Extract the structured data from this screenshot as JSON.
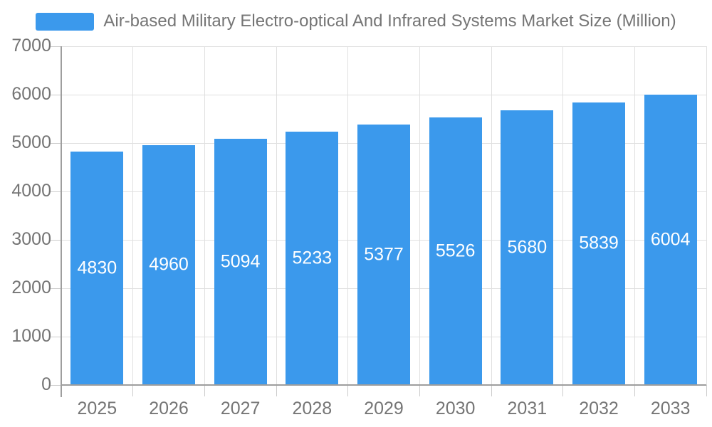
{
  "legend": {
    "label": "Air-based Military Electro-optical And Infrared Systems Market Size (Million)"
  },
  "chart_data": {
    "type": "bar",
    "title": "Air-based Military Electro-optical And Infrared Systems Market Size (Million)",
    "categories": [
      "2025",
      "2026",
      "2027",
      "2028",
      "2029",
      "2030",
      "2031",
      "2032",
      "2033"
    ],
    "values": [
      4830,
      4960,
      5094,
      5233,
      5377,
      5526,
      5680,
      5839,
      6004
    ],
    "xlabel": "",
    "ylabel": "",
    "ylim": [
      0,
      7000
    ],
    "yticks": [
      0,
      1000,
      2000,
      3000,
      4000,
      5000,
      6000,
      7000
    ],
    "grid": true,
    "legend_position": "top-center",
    "bar_color": "#3B99EC",
    "value_label_color": "#FFFFFF",
    "text_color": "#757575",
    "axis_color": "#9E9E9E",
    "grid_color": "#E0E0E0",
    "tick_color": "#CCCCCC"
  }
}
